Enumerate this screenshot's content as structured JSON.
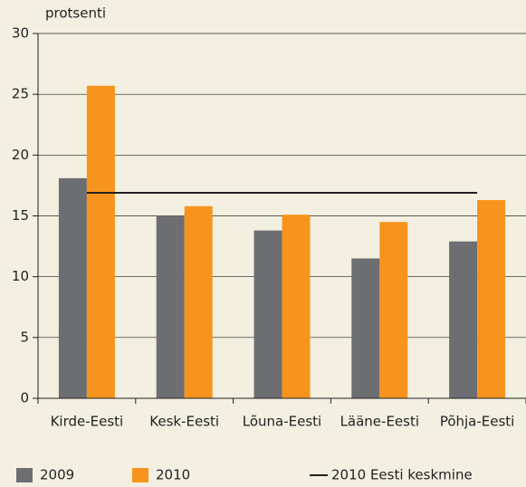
{
  "chart_data": {
    "type": "bar",
    "y_axis_label": "protsenti",
    "categories": [
      "Kirde-Eesti",
      "Kesk-Eesti",
      "Lõuna-Eesti",
      "Lääne-Eesti",
      "Põhja-Eesti"
    ],
    "series": [
      {
        "name": "2009",
        "color": "#6d6e71",
        "values": [
          18.1,
          15.0,
          13.8,
          11.5,
          12.9
        ]
      },
      {
        "name": "2010",
        "color": "#f7941d",
        "values": [
          25.7,
          15.8,
          15.1,
          14.5,
          16.3
        ]
      }
    ],
    "reference_line": {
      "name": "2010 Eesti keskmine",
      "value": 16.9,
      "color": "#231f20"
    },
    "ylim": [
      0,
      30
    ],
    "yticks": [
      0,
      5,
      10,
      15,
      20,
      25,
      30
    ],
    "grid": true
  }
}
